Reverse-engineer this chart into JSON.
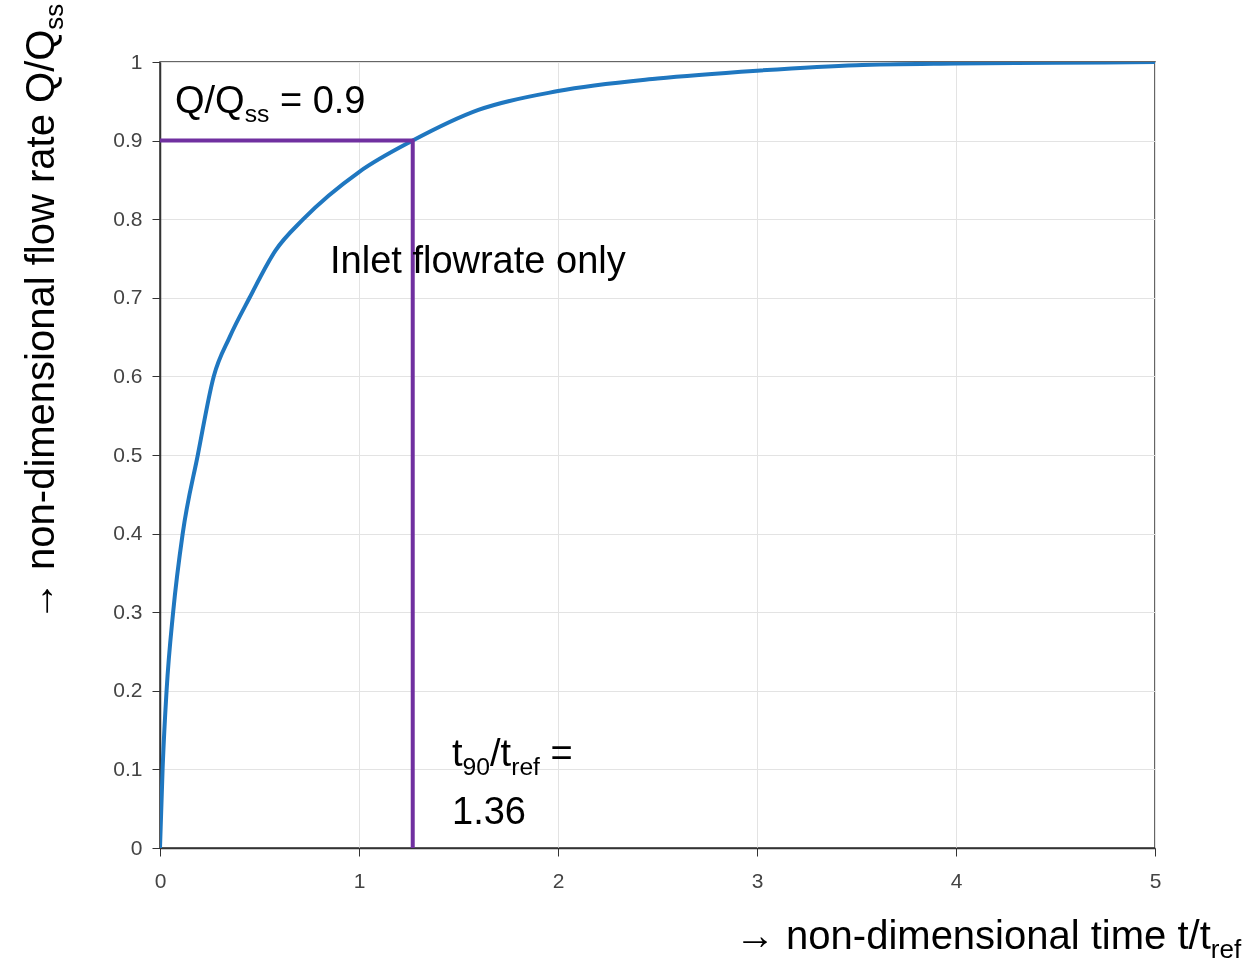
{
  "chart_data": {
    "type": "line",
    "xlabel": "→ non-dimensional time t/t$_{ref}$",
    "ylabel": "→ non-dimensional flow rate Q/Q$_{ss}$",
    "series": [
      {
        "color": "#1f77c0",
        "x": [
          0,
          0.013,
          0.033,
          0.066,
          0.114,
          0.19,
          0.27,
          0.35,
          0.45,
          0.58,
          0.72,
          1.0,
          1.27,
          1.6,
          2,
          2.5,
          3,
          3.5,
          4,
          4.5,
          5
        ],
        "values": [
          0,
          0.1,
          0.2,
          0.3,
          0.4,
          0.5,
          0.6,
          0.65,
          0.7,
          0.76,
          0.8,
          0.86,
          0.9,
          0.939,
          0.963,
          0.979,
          0.989,
          0.996,
          0.998,
          0.999,
          1
        ]
      },
      {
        "color": "#7030a0",
        "x": [
          0,
          1.27,
          1.27
        ],
        "values": [
          0.9,
          0.9,
          0
        ]
      }
    ],
    "annotations": [
      "Q/Q$_{ss}$ = 0.9",
      "Inlet flowrate only",
      "t$_{90}$/t$_{ref}$ =\n1.36"
    ],
    "xlim": [
      0,
      5
    ],
    "xticks": [
      0,
      1,
      2,
      3,
      4,
      5
    ],
    "ylim": [
      0,
      1
    ],
    "yticks": [
      0,
      0.1,
      0.2,
      0.3,
      0.4,
      0.5,
      0.6,
      0.7,
      0.8,
      0.9,
      1
    ],
    "grid": true
  }
}
